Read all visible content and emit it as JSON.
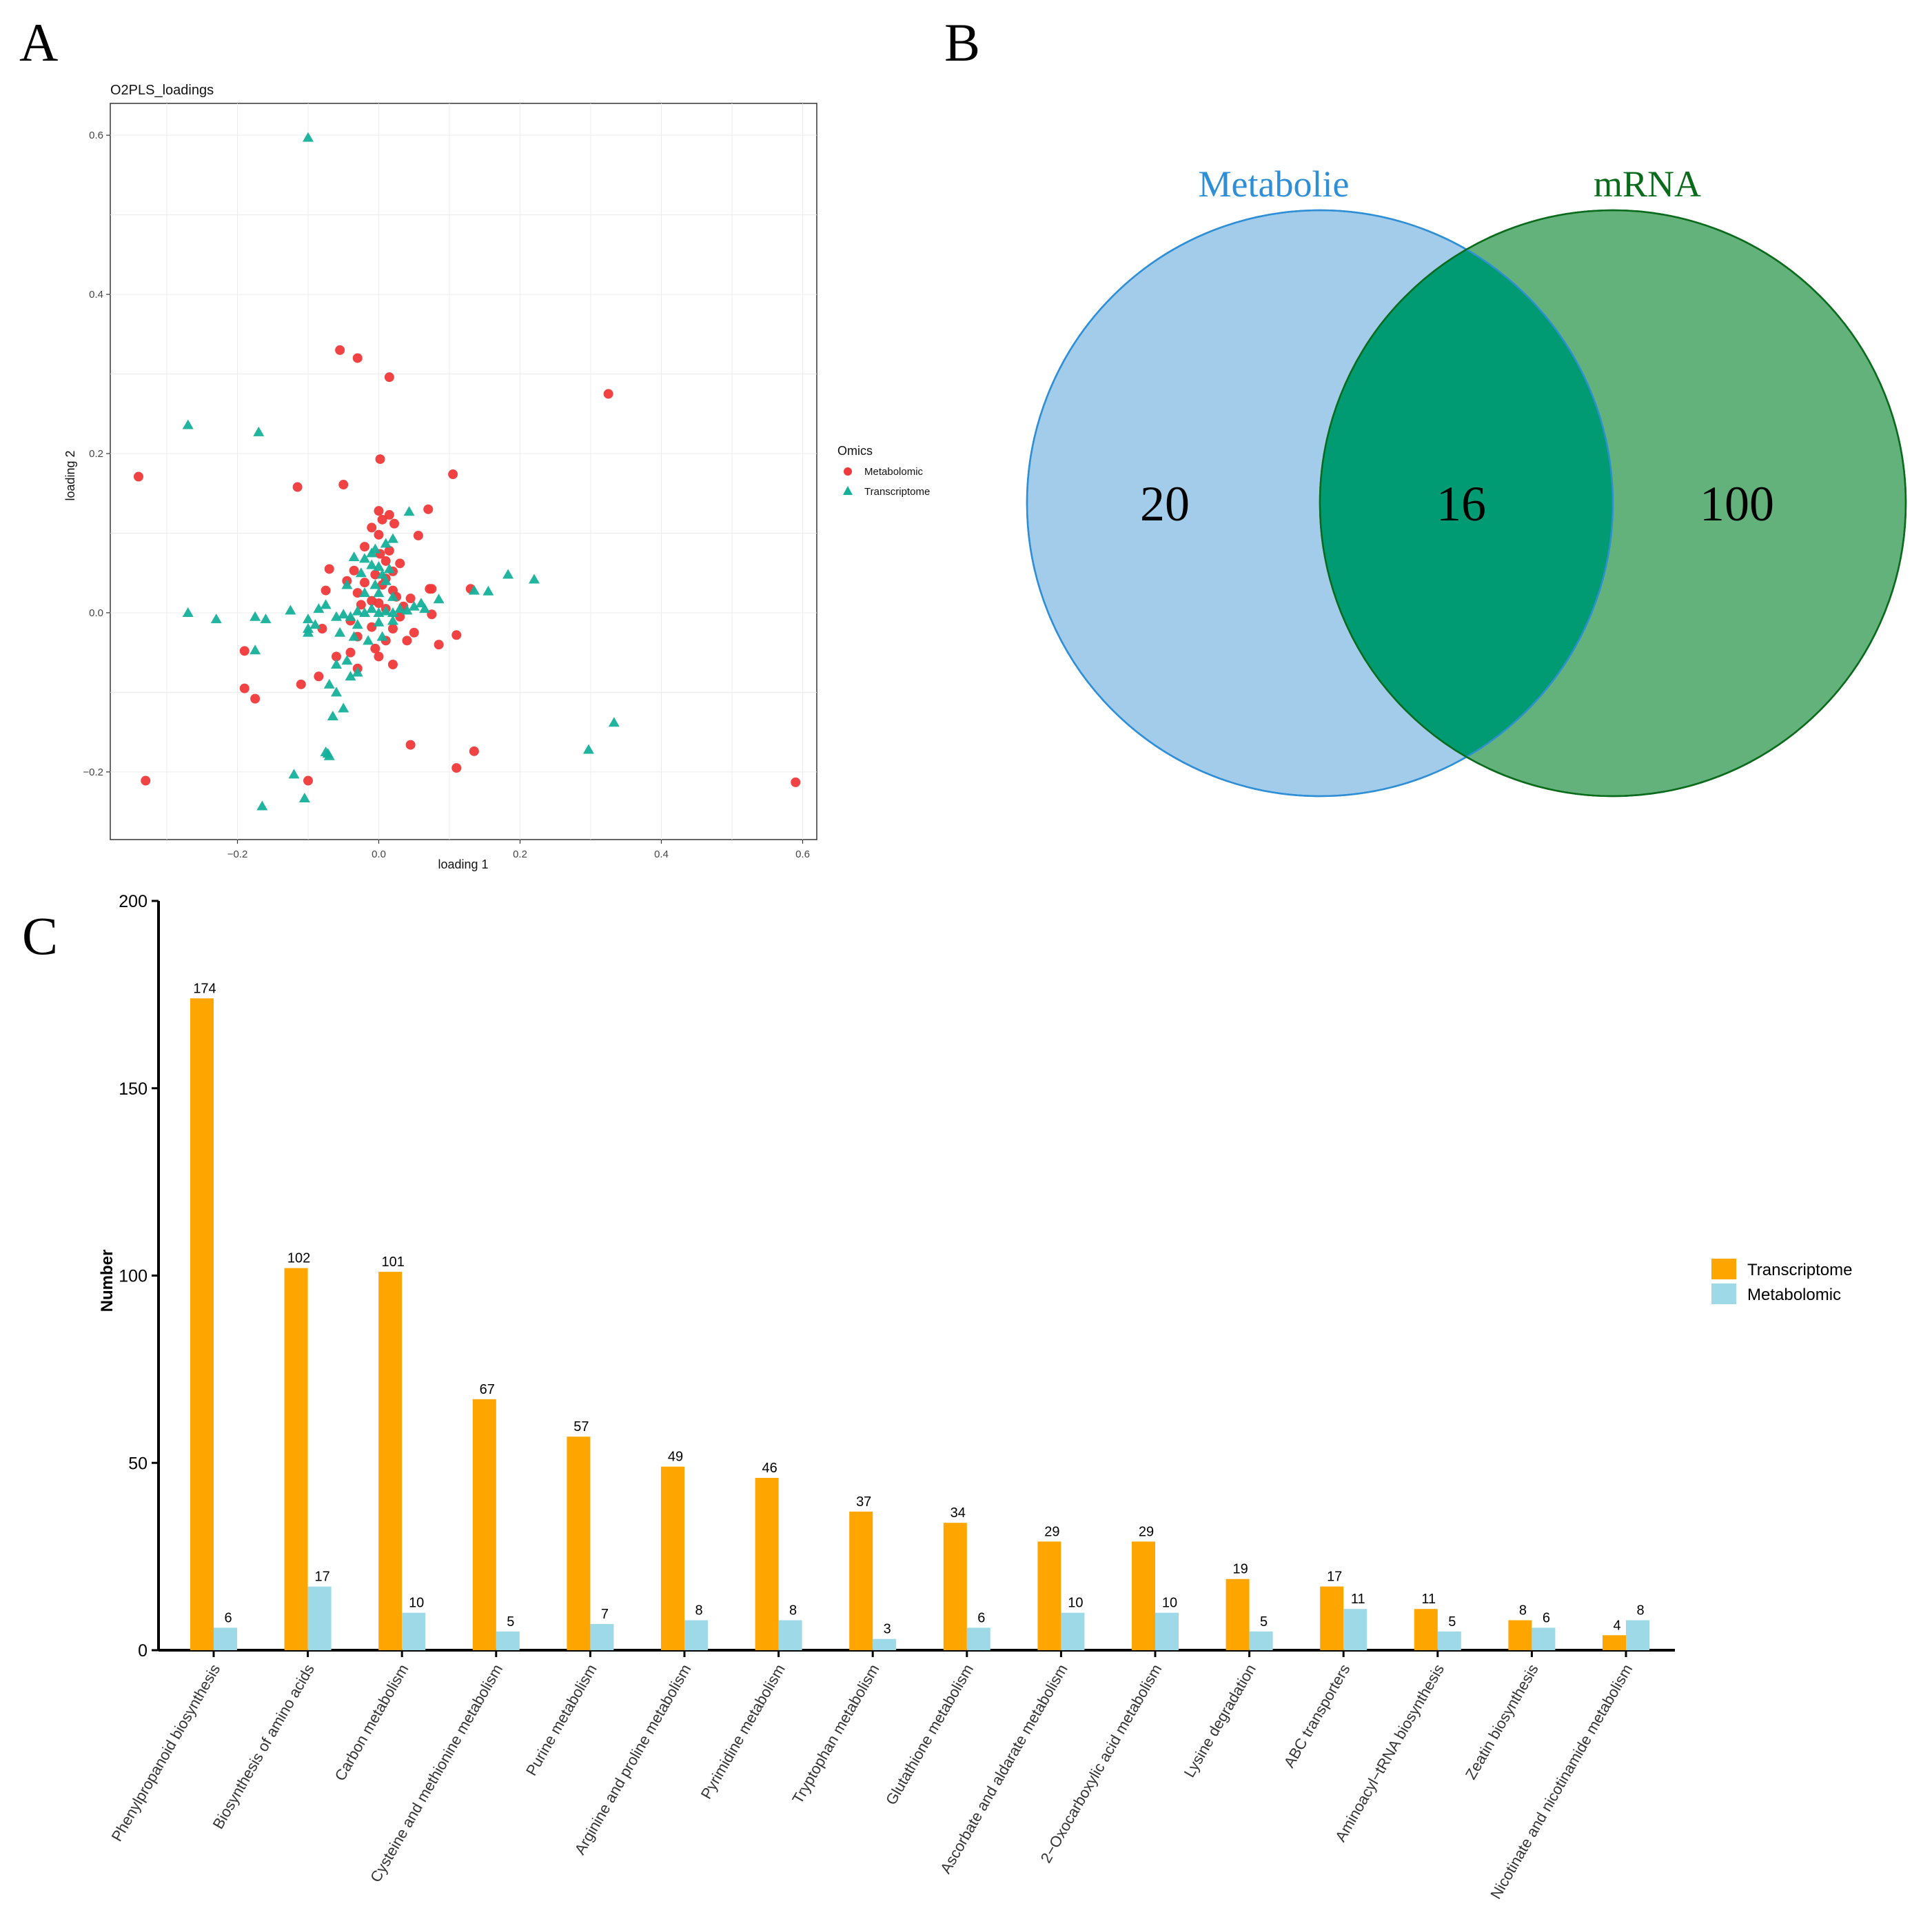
{
  "panels": {
    "a": "A",
    "b": "B",
    "c": "C"
  },
  "chart_data": [
    {
      "type": "scatter",
      "title": "O2PLS_loadings",
      "xlabel": "loading 1",
      "ylabel": "loading 2",
      "xlim": [
        -0.38,
        0.62
      ],
      "ylim": [
        -0.285,
        0.64
      ],
      "xticks": [
        -0.2,
        0.0,
        0.2,
        0.4,
        0.6
      ],
      "xtick_labels": [
        "−0.2",
        "0.0",
        "0.2",
        "0.4",
        "0.6"
      ],
      "yticks": [
        -0.2,
        0.0,
        0.2,
        0.4,
        0.6
      ],
      "ytick_labels": [
        "−0.2",
        "0.0",
        "0.2",
        "0.4",
        "0.6"
      ],
      "grid": true,
      "legend": {
        "title": "Omics",
        "position": "right"
      },
      "series": [
        {
          "name": "Metabolomic",
          "marker": "circle",
          "color": "#f0393a",
          "points": [
            [
              -0.055,
              0.33
            ],
            [
              -0.03,
              0.32
            ],
            [
              0.015,
              0.296
            ],
            [
              0.325,
              0.275
            ],
            [
              -0.34,
              0.171
            ],
            [
              0.105,
              0.174
            ],
            [
              -0.115,
              0.158
            ],
            [
              -0.05,
              0.161
            ],
            [
              0.002,
              0.193
            ],
            [
              0.0,
              0.128
            ],
            [
              0.015,
              0.123
            ],
            [
              0.07,
              0.13
            ],
            [
              0.005,
              0.117
            ],
            [
              0.022,
              0.112
            ],
            [
              -0.01,
              0.107
            ],
            [
              0.056,
              0.097
            ],
            [
              0.0,
              0.098
            ],
            [
              0.015,
              0.078
            ],
            [
              -0.02,
              0.083
            ],
            [
              0.002,
              0.074
            ],
            [
              0.01,
              0.065
            ],
            [
              0.03,
              0.062
            ],
            [
              -0.07,
              0.055
            ],
            [
              -0.035,
              0.053
            ],
            [
              0.02,
              0.052
            ],
            [
              -0.005,
              0.048
            ],
            [
              0.01,
              0.043
            ],
            [
              -0.02,
              0.038
            ],
            [
              0.005,
              0.035
            ],
            [
              0.072,
              0.03
            ],
            [
              0.13,
              0.03
            ],
            [
              0.02,
              0.028
            ],
            [
              -0.075,
              0.028
            ],
            [
              -0.03,
              0.025
            ],
            [
              0.025,
              0.02
            ],
            [
              0.045,
              0.018
            ],
            [
              -0.01,
              0.015
            ],
            [
              0.0,
              0.012
            ],
            [
              0.035,
              0.008
            ],
            [
              -0.025,
              0.01
            ],
            [
              0.01,
              0.005
            ],
            [
              0.075,
              -0.002
            ],
            [
              -0.04,
              -0.01
            ],
            [
              -0.08,
              -0.02
            ],
            [
              -0.01,
              -0.018
            ],
            [
              0.02,
              -0.02
            ],
            [
              0.05,
              -0.025
            ],
            [
              0.11,
              -0.028
            ],
            [
              -0.03,
              -0.03
            ],
            [
              0.01,
              -0.035
            ],
            [
              0.04,
              -0.035
            ],
            [
              0.085,
              -0.04
            ],
            [
              -0.005,
              -0.045
            ],
            [
              -0.04,
              -0.05
            ],
            [
              -0.06,
              -0.055
            ],
            [
              -0.19,
              -0.048
            ],
            [
              0.0,
              -0.055
            ],
            [
              0.02,
              -0.065
            ],
            [
              -0.03,
              -0.07
            ],
            [
              -0.085,
              -0.08
            ],
            [
              -0.11,
              -0.09
            ],
            [
              -0.19,
              -0.095
            ],
            [
              -0.175,
              -0.108
            ],
            [
              0.045,
              -0.166
            ],
            [
              0.135,
              -0.174
            ],
            [
              0.11,
              -0.195
            ],
            [
              -0.33,
              -0.211
            ],
            [
              -0.1,
              -0.211
            ],
            [
              0.59,
              -0.213
            ],
            [
              0.075,
              0.03
            ],
            [
              -0.045,
              0.04
            ],
            [
              0.03,
              -0.005
            ]
          ]
        },
        {
          "name": "Transcriptome",
          "marker": "triangle",
          "color": "#15b09a",
          "points": [
            [
              -0.1,
              0.597
            ],
            [
              -0.27,
              0.236
            ],
            [
              -0.17,
              0.227
            ],
            [
              0.043,
              0.127
            ],
            [
              0.02,
              0.093
            ],
            [
              0.01,
              0.087
            ],
            [
              -0.005,
              0.08
            ],
            [
              -0.01,
              0.075
            ],
            [
              -0.035,
              0.07
            ],
            [
              -0.02,
              0.068
            ],
            [
              -0.01,
              0.06
            ],
            [
              0.0,
              0.058
            ],
            [
              0.015,
              0.055
            ],
            [
              -0.025,
              0.05
            ],
            [
              0.005,
              0.048
            ],
            [
              0.183,
              0.048
            ],
            [
              0.22,
              0.042
            ],
            [
              -0.045,
              0.035
            ],
            [
              -0.005,
              0.035
            ],
            [
              0.01,
              0.04
            ],
            [
              0.135,
              0.028
            ],
            [
              0.155,
              0.027
            ],
            [
              -0.02,
              0.025
            ],
            [
              0.0,
              0.025
            ],
            [
              0.02,
              0.02
            ],
            [
              0.085,
              0.017
            ],
            [
              0.06,
              0.012
            ],
            [
              -0.075,
              0.01
            ],
            [
              -0.125,
              0.003
            ],
            [
              -0.27,
              0.0
            ],
            [
              -0.23,
              -0.008
            ],
            [
              -0.175,
              -0.005
            ],
            [
              -0.16,
              -0.008
            ],
            [
              -0.1,
              -0.008
            ],
            [
              -0.06,
              -0.005
            ],
            [
              -0.05,
              -0.002
            ],
            [
              -0.04,
              -0.005
            ],
            [
              -0.03,
              0.002
            ],
            [
              -0.02,
              0.0
            ],
            [
              -0.01,
              0.005
            ],
            [
              0.0,
              0.0
            ],
            [
              0.01,
              0.002
            ],
            [
              0.02,
              0.0
            ],
            [
              0.03,
              0.005
            ],
            [
              0.04,
              0.003
            ],
            [
              0.05,
              0.008
            ],
            [
              0.065,
              0.005
            ],
            [
              -0.09,
              -0.015
            ],
            [
              -0.1,
              -0.02
            ],
            [
              -0.03,
              -0.015
            ],
            [
              0.0,
              -0.012
            ],
            [
              0.02,
              -0.01
            ],
            [
              -0.055,
              -0.025
            ],
            [
              -0.035,
              -0.03
            ],
            [
              -0.015,
              -0.035
            ],
            [
              0.005,
              -0.03
            ],
            [
              -0.175,
              -0.047
            ],
            [
              -0.045,
              -0.06
            ],
            [
              -0.06,
              -0.065
            ],
            [
              -0.03,
              -0.075
            ],
            [
              -0.04,
              -0.08
            ],
            [
              -0.07,
              -0.09
            ],
            [
              -0.06,
              -0.1
            ],
            [
              -0.05,
              -0.12
            ],
            [
              -0.065,
              -0.13
            ],
            [
              -0.075,
              -0.175
            ],
            [
              -0.07,
              -0.18
            ],
            [
              -0.072,
              -0.177
            ],
            [
              -0.12,
              -0.203
            ],
            [
              0.297,
              -0.172
            ],
            [
              0.333,
              -0.138
            ],
            [
              -0.105,
              -0.233
            ],
            [
              -0.165,
              -0.243
            ],
            [
              -0.1,
              -0.025
            ],
            [
              -0.085,
              0.005
            ]
          ]
        }
      ]
    },
    {
      "type": "venn",
      "sets": [
        {
          "name": "Metabolie",
          "only": "20",
          "fill": "#a3ccea",
          "edge": "#2e8fd6",
          "label_color": "#2e8fd6"
        },
        {
          "name": "mRNA",
          "only": "100",
          "fill": "#63b27b",
          "edge": "#0b6b1d",
          "label_color": "#0b6b1d"
        }
      ],
      "intersection": "16",
      "intersection_fill": "#009b72"
    },
    {
      "type": "bar",
      "ylabel": "Number",
      "ylim": [
        0,
        200
      ],
      "yticks": [
        0,
        50,
        100,
        150,
        200
      ],
      "categories": [
        "Phenylpropanoid biosynthesis",
        "Biosynthesis of amino acids",
        "Carbon metabolism",
        "Cysteine and methionine metabolism",
        "Purine metabolism",
        "Arginine and proline metabolism",
        "Pyrimidine metabolism",
        "Tryptophan metabolism",
        "Glutathione metabolism",
        "Ascorbate and aldarate metabolism",
        "2−Oxocarboxylic acid metabolism",
        "Lysine degradation",
        "ABC transporters",
        "Aminoacyl−tRNA biosynthesis",
        "Zeatin biosynthesis",
        "Nicotinate and nicotinamide metabolism"
      ],
      "series": [
        {
          "name": "Transcriptome",
          "color": "#ffa500",
          "values": [
            174,
            102,
            101,
            67,
            57,
            49,
            46,
            37,
            34,
            29,
            29,
            19,
            17,
            11,
            8,
            4
          ]
        },
        {
          "name": "Metabolomic",
          "color": "#9dd9e7",
          "values": [
            6,
            17,
            10,
            5,
            7,
            8,
            8,
            3,
            6,
            10,
            10,
            5,
            11,
            5,
            6,
            8
          ]
        }
      ],
      "legend": {
        "position": "right"
      }
    }
  ]
}
